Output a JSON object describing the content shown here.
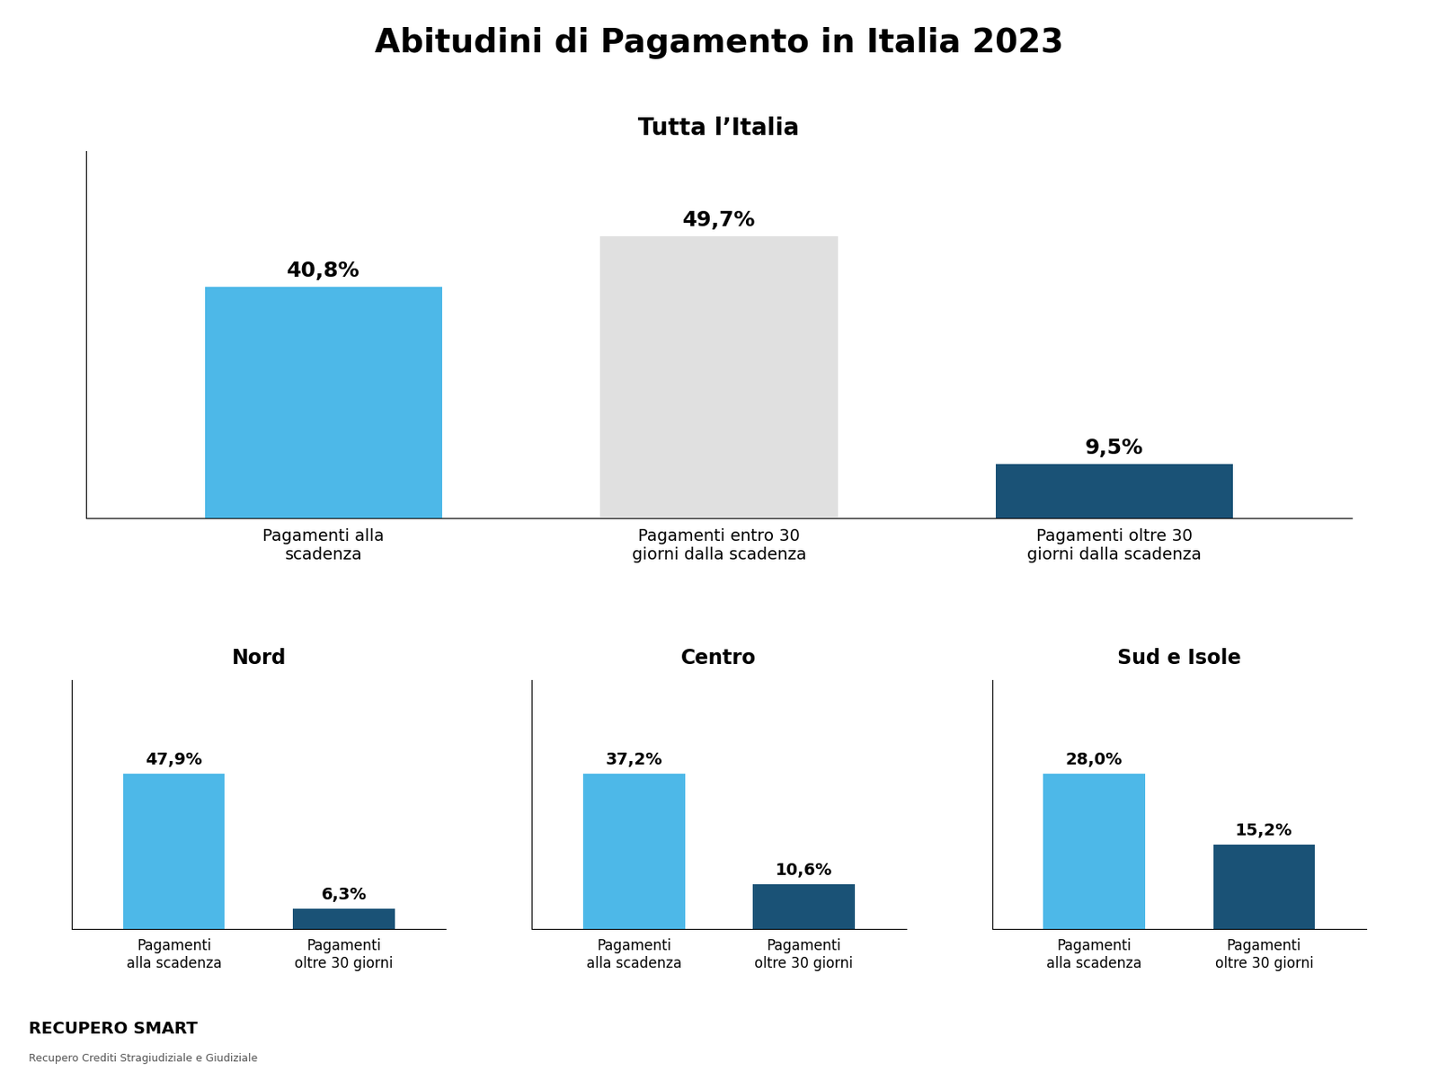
{
  "title": "Abitudini di Pagamento in Italia 2023",
  "annotations": [
    "RECUPERO SMART",
    "Recupero Crediti Stragiudiziale e Giudiziale"
  ],
  "chart_data": [
    {
      "type": "bar",
      "title": "Tutta l’Italia",
      "categories": [
        "Pagamenti alla\nscadenza",
        "Pagamenti entro 30\ngiorni dalla scadenza",
        "Pagamenti oltre 30\ngiorni dalla scadenza"
      ],
      "values": [
        40.8,
        49.7,
        9.5
      ],
      "value_labels": [
        "40,8%",
        "49,7%",
        "9,5%"
      ],
      "colors": [
        "#4db8e8",
        "#e0e0e0",
        "#1a5276"
      ],
      "ylim": [
        0,
        64.61
      ],
      "data_labels": true,
      "tick_labels": "x"
    },
    {
      "type": "bar",
      "title": "Nord",
      "categories": [
        "Pagamenti\nalla scadenza",
        "Pagamenti\noltre 30 giorni"
      ],
      "values": [
        47.9,
        6.3
      ],
      "value_labels": [
        "47,9%",
        "6,3%"
      ],
      "colors": [
        "#4db8e8",
        "#1a5276"
      ],
      "ylim": [
        0,
        76.64
      ],
      "data_labels": true,
      "tick_labels": "x"
    },
    {
      "type": "bar",
      "title": "Centro",
      "categories": [
        "Pagamenti\nalla scadenza",
        "Pagamenti\noltre 30 giorni"
      ],
      "values": [
        37.2,
        10.6
      ],
      "value_labels": [
        "37,2%",
        "10,6%"
      ],
      "colors": [
        "#4db8e8",
        "#1a5276"
      ],
      "ylim": [
        0,
        59.52
      ],
      "data_labels": true,
      "tick_labels": "x"
    },
    {
      "type": "bar",
      "title": "Sud e Isole",
      "categories": [
        "Pagamenti\nalla scadenza",
        "Pagamenti\noltre 30 giorni"
      ],
      "values": [
        28.0,
        15.2
      ],
      "value_labels": [
        "28,0%",
        "15,2%"
      ],
      "colors": [
        "#4db8e8",
        "#1a5276"
      ],
      "ylim": [
        0,
        44.8
      ],
      "data_labels": true,
      "tick_labels": "x"
    }
  ]
}
